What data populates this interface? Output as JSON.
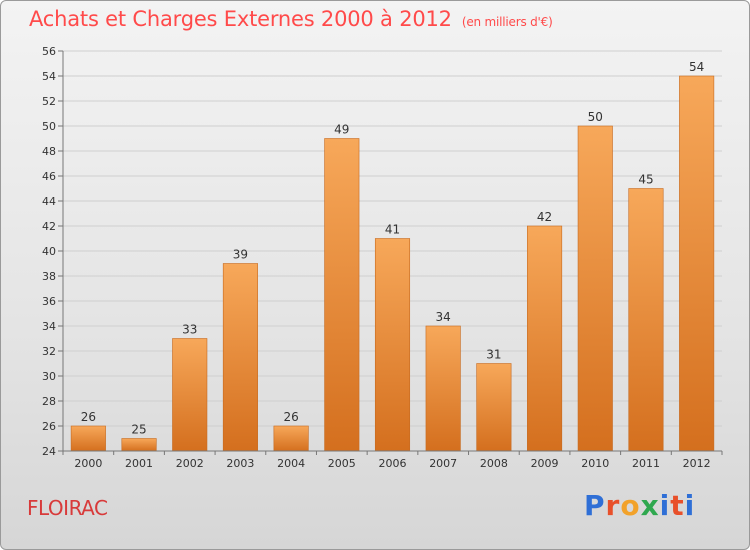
{
  "header": {
    "title": "Achats et Charges Externes 2000 à 2012",
    "unit": "(en milliers d'€)"
  },
  "footer": {
    "city": "FLOIRAC",
    "logo_letters": [
      "P",
      "r",
      "o",
      "x",
      "i",
      "t",
      "i"
    ]
  },
  "colors": {
    "bar_top": "#f7a85a",
    "bar_bottom": "#d46f1e",
    "title": "#ff4a4a",
    "grid": "#cfcfcf"
  },
  "chart_data": {
    "type": "bar",
    "categories": [
      "2000",
      "2001",
      "2002",
      "2003",
      "2004",
      "2005",
      "2006",
      "2007",
      "2008",
      "2009",
      "2010",
      "2011",
      "2012"
    ],
    "values": [
      26,
      25,
      33,
      39,
      26,
      49,
      41,
      34,
      31,
      42,
      50,
      45,
      54
    ],
    "title": "Achats et Charges Externes 2000 à 2012",
    "ylabel": "(en milliers d'€)",
    "xlabel": "",
    "ylim": [
      24,
      56
    ],
    "yticks": [
      24,
      26,
      28,
      30,
      32,
      34,
      36,
      38,
      40,
      42,
      44,
      46,
      48,
      50,
      52,
      54,
      56
    ],
    "grid": true,
    "data_labels": true
  }
}
